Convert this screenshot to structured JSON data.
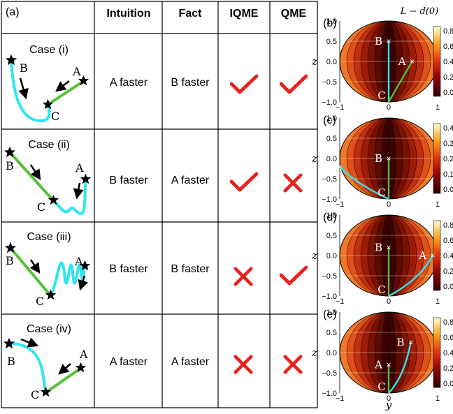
{
  "table": {
    "panel_label": "(a)",
    "headers": [
      "Intuition",
      "Fact",
      "IQME",
      "QME"
    ],
    "rows": [
      {
        "case": "Case (i)",
        "intuition": "A faster",
        "fact": "B faster",
        "iqme": "check",
        "qme": "check"
      },
      {
        "case": "Case (ii)",
        "intuition": "B faster",
        "fact": "A faster",
        "iqme": "check",
        "qme": "cross"
      },
      {
        "case": "Case (iii)",
        "intuition": "B faster",
        "fact": "B faster",
        "iqme": "cross",
        "qme": "check"
      },
      {
        "case": "Case (iv)",
        "intuition": "A faster",
        "fact": "A faster",
        "iqme": "cross",
        "qme": "cross"
      }
    ]
  },
  "point_labels": {
    "a": "A",
    "b": "B",
    "c": "C"
  },
  "colors": {
    "green_segment": "#55c035",
    "cyan_segment": "#2ee6f0",
    "mark_red": "#e8221d",
    "grid": "#000000"
  },
  "icons": {
    "check": "check-mark-icon",
    "cross": "cross-mark-icon",
    "star": "star-icon",
    "arrow": "arrow-icon"
  },
  "spheres": {
    "colorbar_title": "L − d(0)",
    "z_label": "z",
    "y_label": "y",
    "y_ticks": [
      "−1",
      "0",
      "1"
    ],
    "z_ticks": [
      "1.0",
      "0.5",
      "0.0",
      "−0.5",
      "−1.0"
    ],
    "panels": [
      {
        "label": "(b)",
        "colorbar_ticks": [
          "0.8",
          "0.6",
          "0.4",
          "0.2",
          "0.0"
        ]
      },
      {
        "label": "(c)",
        "colorbar_ticks": [
          "0.4",
          "0.3",
          "0.2",
          "0.1",
          "0.0"
        ]
      },
      {
        "label": "(d)",
        "colorbar_ticks": [
          "0.8",
          "0.6",
          "0.4",
          "0.2",
          "0.0"
        ]
      },
      {
        "label": "(e)",
        "colorbar_ticks": [
          "0.8",
          "0.6",
          "0.4",
          "0.2",
          "0.0"
        ]
      }
    ]
  }
}
